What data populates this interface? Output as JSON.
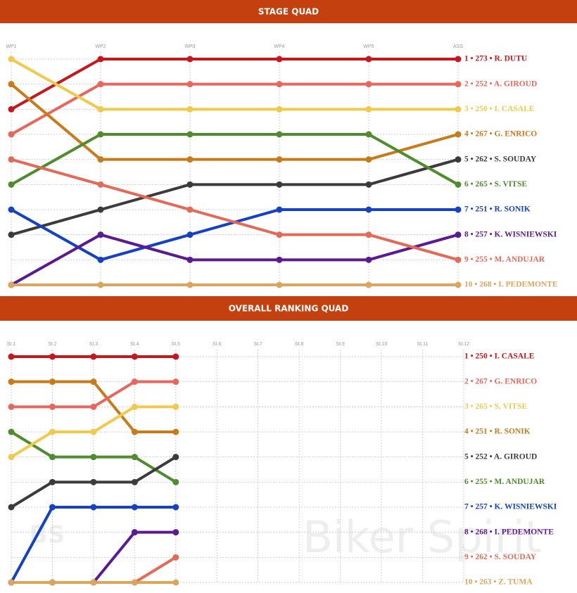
{
  "chart_data": [
    {
      "type": "bump",
      "title": "STAGE QUAD",
      "categories": [
        "WP1",
        "WP2",
        "WP3",
        "WP4",
        "WP5",
        "ASS"
      ],
      "ylim": [
        10,
        1
      ],
      "yticks": [
        1,
        2,
        3,
        4,
        5,
        6,
        7,
        8,
        9,
        10
      ],
      "grid": true,
      "series": [
        {
          "color": "#c8161d",
          "values": [
            3,
            1,
            1,
            1,
            1,
            1
          ]
        },
        {
          "color": "#e8675c",
          "values": [
            4,
            2,
            2,
            2,
            2,
            2
          ]
        },
        {
          "color": "#f1c94c",
          "values": [
            1,
            3,
            3,
            3,
            3,
            3
          ]
        },
        {
          "color": "#c97a19",
          "values": [
            2,
            5,
            5,
            5,
            5,
            4
          ]
        },
        {
          "color": "#3b3b3b",
          "values": [
            8,
            7,
            6,
            6,
            6,
            5
          ]
        },
        {
          "color": "#4f8c2d",
          "values": [
            6,
            4,
            4,
            4,
            4,
            6
          ]
        },
        {
          "color": "#1442c2",
          "values": [
            7,
            9,
            8,
            7,
            7,
            7
          ]
        },
        {
          "color": "#5b1a92",
          "values": [
            10,
            8,
            9,
            9,
            9,
            8
          ]
        },
        {
          "color": "#e46a58",
          "values": [
            5,
            6,
            7,
            8,
            8,
            9
          ]
        },
        {
          "color": "#dca55c",
          "values": [
            10,
            10,
            10,
            10,
            10,
            10
          ]
        }
      ],
      "labels": [
        {
          "text": "1 • 273 • R. DUTU",
          "color": "#c8161d"
        },
        {
          "text": "2 • 252 • A. GIROUD",
          "color": "#e8675c"
        },
        {
          "text": "3 • 250 • I. CASALE",
          "color": "#f1c94c"
        },
        {
          "text": "4 • 267 • G. ENRICO",
          "color": "#c97a19"
        },
        {
          "text": "5 • 262 • S. SOUDAY",
          "color": "#3b3b3b"
        },
        {
          "text": "6 • 265 • S. VITSE",
          "color": "#4f8c2d"
        },
        {
          "text": "7 • 251 • R. SONIK",
          "color": "#1442c2"
        },
        {
          "text": "8 • 257 • K. WISNIEWSKI",
          "color": "#5b1a92"
        },
        {
          "text": "9 • 255 • M. ANDUJAR",
          "color": "#e46a58"
        },
        {
          "text": "10 • 268 • I. PEDEMONTE",
          "color": "#dca55c"
        }
      ]
    },
    {
      "type": "bump",
      "title": "OVERALL RANKING QUAD",
      "categories": [
        "St.1",
        "St.2",
        "St.3",
        "St.4",
        "St.5",
        "St.6",
        "St.7",
        "St.8",
        "St.9",
        "St.10",
        "St.11",
        "St.12"
      ],
      "ylim": [
        10,
        1
      ],
      "yticks": [
        1,
        2,
        3,
        4,
        5,
        6,
        7,
        8,
        9,
        10
      ],
      "grid": true,
      "series": [
        {
          "color": "#c8161d",
          "values": [
            1,
            1,
            1,
            1,
            1,
            null,
            null,
            null,
            null,
            null,
            null,
            null
          ]
        },
        {
          "color": "#c97a19",
          "values": [
            2,
            2,
            2,
            4,
            4,
            null,
            null,
            null,
            null,
            null,
            null,
            null
          ]
        },
        {
          "color": "#e8675c",
          "values": [
            3,
            3,
            3,
            2,
            2,
            null,
            null,
            null,
            null,
            null,
            null,
            null
          ]
        },
        {
          "color": "#4f8c2d",
          "values": [
            4,
            5,
            5,
            5,
            6,
            null,
            null,
            null,
            null,
            null,
            null,
            null
          ]
        },
        {
          "color": "#f1c94c",
          "values": [
            5,
            4,
            4,
            3,
            3,
            null,
            null,
            null,
            null,
            null,
            null,
            null
          ]
        },
        {
          "color": "#3b3b3b",
          "values": [
            7,
            6,
            6,
            6,
            5,
            null,
            null,
            null,
            null,
            null,
            null,
            null
          ]
        },
        {
          "color": "#1442c2",
          "values": [
            10,
            7,
            7,
            7,
            7,
            null,
            null,
            null,
            null,
            null,
            null,
            null
          ]
        },
        {
          "color": "#5b1a92",
          "values": [
            10,
            10,
            10,
            8,
            8,
            null,
            null,
            null,
            null,
            null,
            null,
            null
          ]
        },
        {
          "color": "#e46a58",
          "values": [
            10,
            10,
            10,
            10,
            9,
            null,
            null,
            null,
            null,
            null,
            null,
            null
          ]
        },
        {
          "color": "#dca55c",
          "values": [
            10,
            10,
            10,
            10,
            10,
            null,
            null,
            null,
            null,
            null,
            null,
            null
          ]
        }
      ],
      "labels": [
        {
          "text": "1 • 250 • I. CASALE",
          "color": "#c8161d"
        },
        {
          "text": "2 • 267 • G. ENRICO",
          "color": "#e8675c"
        },
        {
          "text": "3 • 265 • S. VITSE",
          "color": "#f1c94c"
        },
        {
          "text": "4 • 251 • R. SONIK",
          "color": "#c97a19"
        },
        {
          "text": "5 • 252 • A. GIROUD",
          "color": "#3b3b3b"
        },
        {
          "text": "6 • 255 • M. ANDUJAR",
          "color": "#4f8c2d"
        },
        {
          "text": "7 • 257 • K. WISNIEWSKI",
          "color": "#1442c2"
        },
        {
          "text": "8 • 268 • I. PEDEMONTE",
          "color": "#5b1a92"
        },
        {
          "text": "9 • 262 • S. SOUDAY",
          "color": "#e46a58"
        },
        {
          "text": "10 • 263 • Z. TUMA",
          "color": "#dca55c"
        }
      ],
      "watermark": "Biker Spirit",
      "logo": "BS"
    }
  ]
}
